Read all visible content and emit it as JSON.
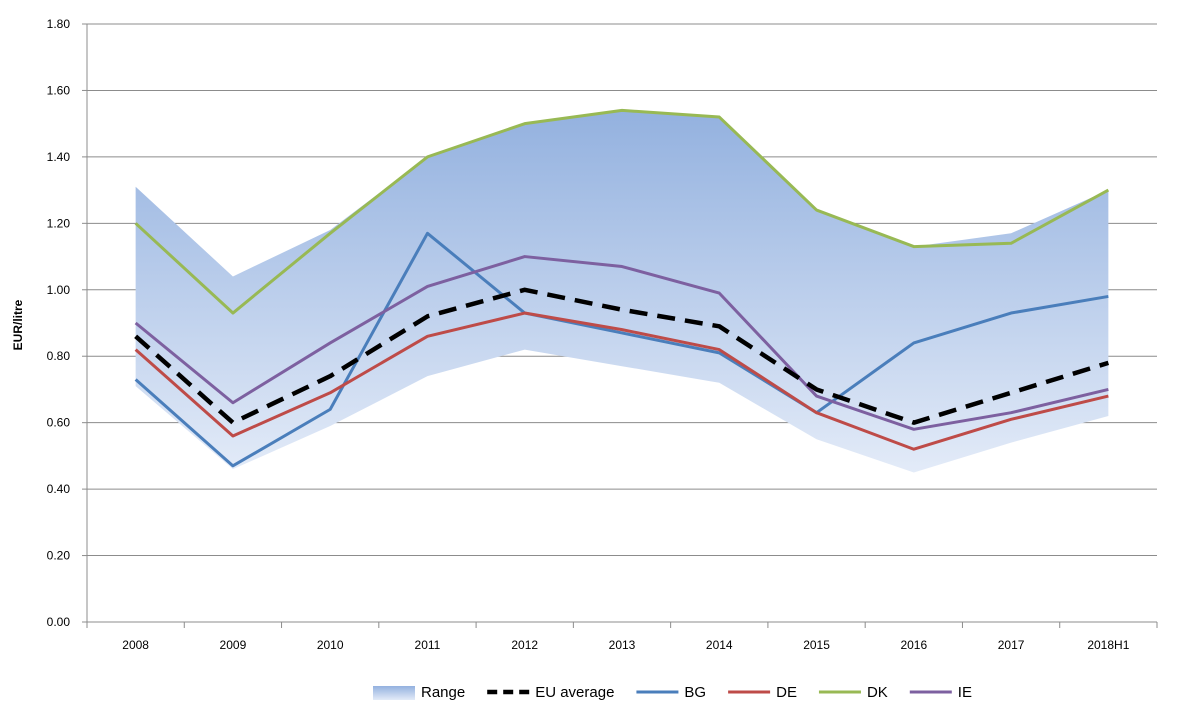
{
  "chart_data": {
    "type": "line",
    "title": "",
    "xlabel": "",
    "ylabel": "EUR/litre",
    "categories": [
      "2008",
      "2009",
      "2010",
      "2011",
      "2012",
      "2013",
      "2014",
      "2015",
      "2016",
      "2017",
      "2018H1"
    ],
    "ylim": [
      0,
      1.8
    ],
    "yticks": [
      "0.00",
      "0.20",
      "0.40",
      "0.60",
      "0.80",
      "1.00",
      "1.20",
      "1.40",
      "1.60",
      "1.80"
    ],
    "grid": "horizontal",
    "legend_position": "bottom",
    "range": {
      "name": "Range",
      "upper": [
        1.31,
        1.04,
        1.18,
        1.4,
        1.5,
        1.54,
        1.52,
        1.24,
        1.13,
        1.17,
        1.3
      ],
      "lower": [
        0.71,
        0.46,
        0.59,
        0.74,
        0.82,
        0.77,
        0.72,
        0.55,
        0.45,
        0.54,
        0.62
      ],
      "color_top": "#93b1df",
      "color_bottom": "#e3ebf8"
    },
    "series": [
      {
        "name": "EU average",
        "values": [
          0.86,
          0.6,
          0.74,
          0.92,
          1.0,
          0.94,
          0.89,
          0.7,
          0.6,
          0.69,
          0.78
        ],
        "color": "#000000",
        "dashed": true
      },
      {
        "name": "BG",
        "values": [
          0.73,
          0.47,
          0.64,
          1.17,
          0.93,
          0.87,
          0.81,
          0.63,
          0.84,
          0.93,
          0.98
        ],
        "color": "#4a7ebb",
        "dashed": false
      },
      {
        "name": "DE",
        "values": [
          0.82,
          0.56,
          0.69,
          0.86,
          0.93,
          0.88,
          0.82,
          0.63,
          0.52,
          0.61,
          0.68
        ],
        "color": "#be4b48",
        "dashed": false
      },
      {
        "name": "DK",
        "values": [
          1.2,
          0.93,
          1.17,
          1.4,
          1.5,
          1.54,
          1.52,
          1.24,
          1.13,
          1.14,
          1.3
        ],
        "color": "#98b954",
        "dashed": false
      },
      {
        "name": "IE",
        "values": [
          0.9,
          0.66,
          0.84,
          1.01,
          1.1,
          1.07,
          0.99,
          0.68,
          0.58,
          0.63,
          0.7
        ],
        "color": "#7d60a0",
        "dashed": false
      }
    ]
  }
}
